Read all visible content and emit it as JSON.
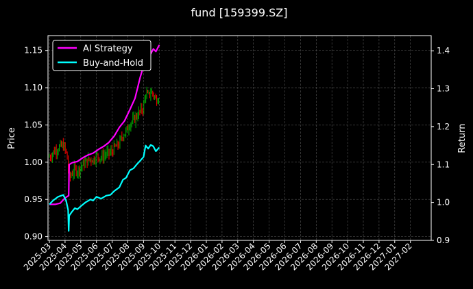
{
  "chart_data": {
    "type": "line",
    "title": "fund [159399.SZ]",
    "ylabel_left": "Price",
    "ylabel_right": "Return",
    "ylim_left": [
      0.895,
      1.17
    ],
    "ylim_right": [
      0.9,
      1.44
    ],
    "yticks_left": [
      "0.90",
      "0.95",
      "1.00",
      "1.05",
      "1.10",
      "1.15"
    ],
    "yticks_right": [
      "0.9",
      "1.0",
      "1.1",
      "1.2",
      "1.3",
      "1.4"
    ],
    "xticks": [
      "2025-03",
      "2025-04",
      "2025-05",
      "2025-06",
      "2025-07",
      "2025-08",
      "2025-09",
      "2025-10",
      "2025-11",
      "2025-12",
      "2026-01",
      "2026-02",
      "2026-03",
      "2026-04",
      "2026-05",
      "2026-06",
      "2026-07",
      "2026-08",
      "2026-09",
      "2026-10",
      "2026-11",
      "2026-12",
      "2027-01",
      "2027-02"
    ],
    "grid": true,
    "legend": "top-left",
    "colors": {
      "background": "#000000",
      "axes": "#ffffff",
      "grid": "#555555",
      "ai_strategy": "#ff00ff",
      "buy_and_hold": "#00ffff",
      "candle_up": "#00b000",
      "candle_down": "#ff0000"
    },
    "series": [
      {
        "name": "AI Strategy",
        "axis": "right",
        "x": [
          "2025-03-01",
          "2025-03-12",
          "2025-03-22",
          "2025-04-01",
          "2025-04-08",
          "2025-04-09",
          "2025-04-15",
          "2025-04-25",
          "2025-05-05",
          "2025-05-15",
          "2025-05-25",
          "2025-06-05",
          "2025-06-15",
          "2025-06-25",
          "2025-07-05",
          "2025-07-15",
          "2025-07-25",
          "2025-08-05",
          "2025-08-15",
          "2025-08-25",
          "2025-09-01",
          "2025-09-05",
          "2025-09-10",
          "2025-09-15",
          "2025-09-20",
          "2025-09-25",
          "2025-10-01"
        ],
        "values": [
          0.995,
          0.995,
          0.998,
          1.012,
          1.018,
          1.1,
          1.105,
          1.108,
          1.118,
          1.125,
          1.13,
          1.14,
          1.148,
          1.158,
          1.175,
          1.198,
          1.215,
          1.245,
          1.275,
          1.33,
          1.36,
          1.385,
          1.4,
          1.392,
          1.405,
          1.398,
          1.415
        ]
      },
      {
        "name": "Buy-and-Hold",
        "axis": "right",
        "x": [
          "2025-03-01",
          "2025-03-08",
          "2025-03-18",
          "2025-03-28",
          "2025-04-03",
          "2025-04-07",
          "2025-04-08",
          "2025-04-09",
          "2025-04-14",
          "2025-04-20",
          "2025-04-25",
          "2025-05-01",
          "2025-05-10",
          "2025-05-20",
          "2025-05-25",
          "2025-06-01",
          "2025-06-10",
          "2025-06-20",
          "2025-06-28",
          "2025-07-05",
          "2025-07-15",
          "2025-07-22",
          "2025-07-28",
          "2025-08-05",
          "2025-08-12",
          "2025-08-18",
          "2025-08-25",
          "2025-09-01",
          "2025-09-05",
          "2025-09-10",
          "2025-09-15",
          "2025-09-20",
          "2025-09-25",
          "2025-10-01"
        ],
        "values": [
          0.995,
          1.005,
          1.015,
          1.02,
          1.005,
          0.98,
          0.925,
          0.965,
          0.975,
          0.985,
          0.982,
          0.99,
          1.0,
          1.008,
          1.005,
          1.015,
          1.01,
          1.018,
          1.02,
          1.03,
          1.04,
          1.06,
          1.065,
          1.085,
          1.09,
          1.1,
          1.11,
          1.12,
          1.15,
          1.142,
          1.152,
          1.148,
          1.135,
          1.145
        ]
      }
    ]
  }
}
